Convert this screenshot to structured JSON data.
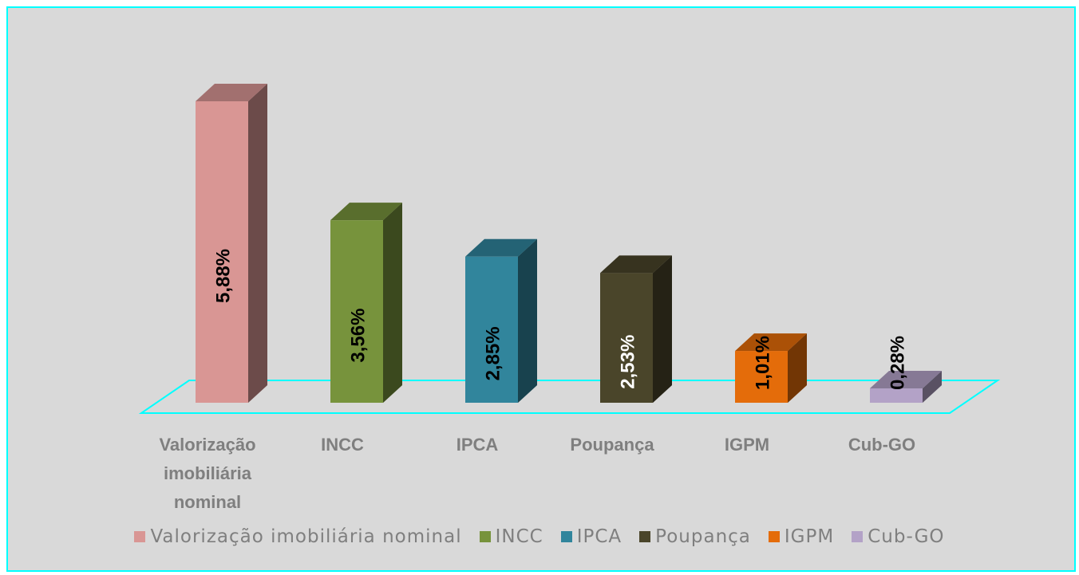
{
  "chart_data": {
    "type": "bar3d",
    "categories": [
      "Valorização imobiliária nominal",
      "INCC",
      "IPCA",
      "Poupança",
      "IGPM",
      "Cub-GO"
    ],
    "values": [
      5.88,
      3.56,
      2.85,
      2.53,
      1.01,
      0.28
    ],
    "value_labels": [
      "5,88%",
      "3,56%",
      "2,85%",
      "2,53%",
      "1,01%",
      "0,28%"
    ],
    "colors": [
      "#d99694",
      "#77933c",
      "#31859c",
      "#4a452a",
      "#e46c0a",
      "#b3a2c7"
    ],
    "legend": "bottom"
  }
}
